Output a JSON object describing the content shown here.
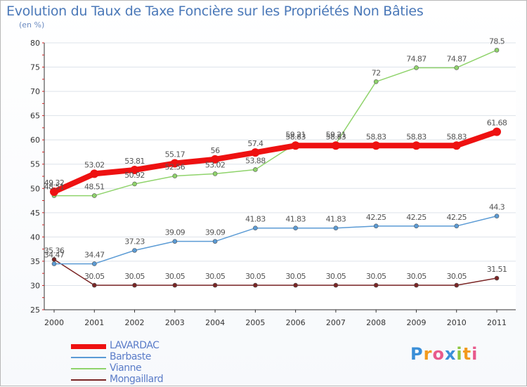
{
  "title": "Evolution du Taux de Taxe Foncière sur les Propriétés Non Bâties",
  "unit": "(en %)",
  "logo": "Proxiti",
  "chart_data": {
    "type": "line",
    "ylim": [
      25,
      80
    ],
    "yticks": [
      25,
      30,
      35,
      40,
      45,
      50,
      55,
      60,
      65,
      70,
      75,
      80
    ],
    "categories": [
      "2000",
      "2001",
      "2002",
      "2003",
      "2004",
      "2005",
      "2006",
      "2007",
      "2008",
      "2009",
      "2010",
      "2011"
    ],
    "series": [
      {
        "name": "LAVARDAC",
        "color": "#ee1111",
        "values": [
          49.32,
          53.02,
          53.81,
          55.17,
          56,
          57.4,
          58.83,
          58.83,
          58.83,
          58.83,
          58.83,
          61.68
        ]
      },
      {
        "name": "Barbaste",
        "color": "#5b9bd5",
        "values": [
          34.47,
          34.47,
          37.23,
          39.09,
          39.09,
          41.83,
          41.83,
          41.83,
          42.25,
          42.25,
          42.25,
          44.3
        ]
      },
      {
        "name": "Vianne",
        "color": "#8fd36b",
        "values": [
          48.51,
          48.51,
          50.92,
          52.56,
          53.02,
          53.88,
          59.21,
          59.21,
          72,
          74.87,
          74.87,
          78.5
        ]
      },
      {
        "name": "Mongaillard",
        "color": "#7a2525",
        "values": [
          35.36,
          30.05,
          30.05,
          30.05,
          30.05,
          30.05,
          30.05,
          30.05,
          30.05,
          30.05,
          30.05,
          31.51
        ]
      }
    ],
    "labels": [
      {
        "series": "LAVARDAC",
        "texts": [
          "49.32",
          "53.02",
          "53.81",
          "55.17",
          "56",
          "57.4",
          "58.83",
          "58.83",
          "58.83",
          "58.83",
          "58.83",
          "61.68"
        ]
      },
      {
        "series": "Barbaste",
        "texts": [
          "34.47",
          "34.47",
          "37.23",
          "39.09",
          "39.09",
          "41.83",
          "41.83",
          "41.83",
          "42.25",
          "42.25",
          "42.25",
          "44.3"
        ]
      },
      {
        "series": "Vianne",
        "texts": [
          "48.51",
          "48.51",
          "50.92",
          "52.56",
          "53.02",
          "53.88",
          "59.21",
          "59.21",
          "72",
          "74.87",
          "74.87",
          "78.5"
        ]
      },
      {
        "series": "Mongaillard",
        "texts": [
          "35.36",
          "30.05",
          "30.05",
          "30.05",
          "30.05",
          "30.05",
          "30.05",
          "30.05",
          "30.05",
          "30.05",
          "30.05",
          "31.51"
        ]
      }
    ]
  }
}
